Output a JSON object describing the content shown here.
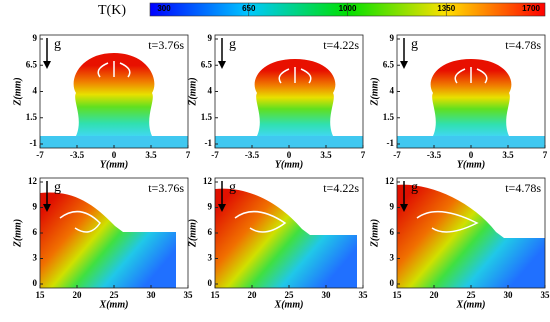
{
  "colorbar": {
    "label": "T(K)",
    "ticks": [
      300,
      650,
      1000,
      1350,
      1700
    ]
  },
  "panels": [
    {
      "g": "g",
      "time": "t=3.76s",
      "xlabel": "Y(mm)",
      "ylabel": "Z(mm)",
      "xticks": [
        -7,
        -3.5,
        0,
        3.5,
        7
      ],
      "yticks": [
        9,
        6.5,
        4,
        1.5,
        -1
      ]
    },
    {
      "g": "g",
      "time": "t=4.22s",
      "xlabel": "Y(mm)",
      "ylabel": "Z(mm)",
      "xticks": [
        -7,
        -3.5,
        0,
        3.5,
        7
      ],
      "yticks": [
        9,
        6.5,
        4,
        1.5,
        -1
      ]
    },
    {
      "g": "g",
      "time": "t=4.78s",
      "xlabel": "Y(mm)",
      "ylabel": "Z(mm)",
      "xticks": [
        -7,
        -3.5,
        0,
        3.5,
        7
      ],
      "yticks": [
        9,
        6.5,
        4,
        1.5,
        -1
      ]
    },
    {
      "g": "g",
      "time": "t=3.76s",
      "xlabel": "X(mm)",
      "ylabel": "Z(mm)",
      "xticks": [
        15,
        20,
        25,
        30,
        35
      ],
      "yticks": [
        12,
        9,
        6,
        3,
        0
      ]
    },
    {
      "g": "g",
      "time": "t=4.22s",
      "xlabel": "X(mm)",
      "ylabel": "Z(mm)",
      "xticks": [
        15,
        20,
        25,
        30,
        35
      ],
      "yticks": [
        12,
        9,
        6,
        3,
        0
      ]
    },
    {
      "g": "g",
      "time": "t=4.78s",
      "xlabel": "X(mm)",
      "ylabel": "Z(mm)",
      "xticks": [
        15,
        20,
        25,
        30,
        35
      ],
      "yticks": [
        12,
        9,
        6,
        3,
        0
      ]
    }
  ]
}
